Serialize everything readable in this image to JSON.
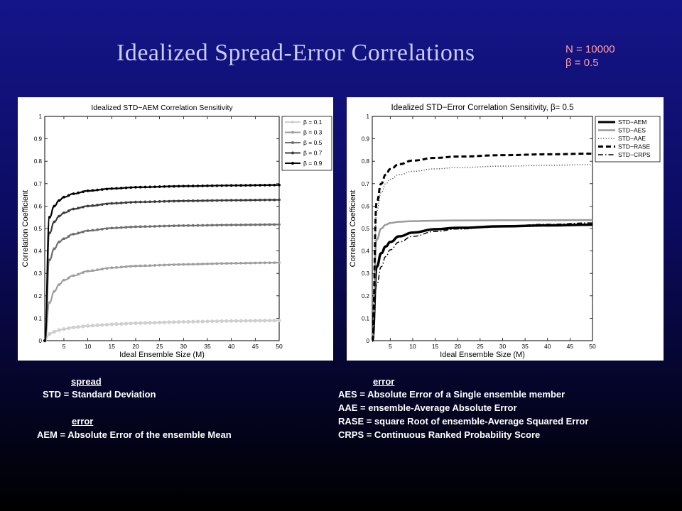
{
  "slide": {
    "title": "Idealized  Spread-Error  Correlations",
    "params": {
      "n": "N = 10000",
      "beta": "β = 0.5"
    }
  },
  "definitions": {
    "left": {
      "spread_heading": "spread",
      "std": {
        "abbr": "STD =",
        "text": "Standard Deviation"
      },
      "error_heading": "error",
      "aem": "AEM = Absolute Error of the ensemble Mean"
    },
    "right": {
      "error_heading": "error",
      "aes": "AES = Absolute Error of a Single ensemble member",
      "aae": "AAE = ensemble-Average Absolute Error",
      "rase": "RASE = square Root of ensemble-Average Squared Error",
      "crps": "CRPS = Continuous Ranked Probability Score"
    }
  },
  "colors": {
    "background_top": "#15158a",
    "background_bottom": "#000000",
    "title": "#c9ccf5",
    "params": "#ff9f9f",
    "definitions": "#ffffff"
  },
  "chart_data": [
    {
      "type": "line",
      "title": "Idealized STD−AEM Correlation Sensitivity",
      "xlabel": "Ideal Ensemble Size (M)",
      "ylabel": "Correlation Coefficient",
      "xlim": [
        1,
        50
      ],
      "ylim": [
        0,
        1
      ],
      "xticks": [
        5,
        10,
        15,
        20,
        25,
        30,
        35,
        40,
        45,
        50
      ],
      "yticks": [
        0,
        0.1,
        0.2,
        0.3,
        0.4,
        0.5,
        0.6,
        0.7,
        0.8,
        0.9,
        1
      ],
      "grid": false,
      "legend_position": "top-right",
      "x": [
        1,
        2,
        3,
        4,
        5,
        7,
        10,
        15,
        20,
        30,
        40,
        50
      ],
      "series": [
        {
          "name": "β = 0.1",
          "color": "#cfcfcf",
          "marker": true,
          "values": [
            0.0,
            0.03,
            0.04,
            0.047,
            0.052,
            0.059,
            0.066,
            0.073,
            0.078,
            0.084,
            0.088,
            0.09
          ]
        },
        {
          "name": "β = 0.3",
          "color": "#9e9e9e",
          "marker": true,
          "values": [
            0.0,
            0.17,
            0.22,
            0.25,
            0.27,
            0.29,
            0.31,
            0.325,
            0.333,
            0.34,
            0.345,
            0.348
          ]
        },
        {
          "name": "β = 0.5",
          "color": "#6e6e6e",
          "marker": true,
          "values": [
            0.0,
            0.36,
            0.41,
            0.44,
            0.455,
            0.475,
            0.49,
            0.502,
            0.508,
            0.513,
            0.516,
            0.518
          ]
        },
        {
          "name": "β = 0.7",
          "color": "#3c3c3c",
          "marker": true,
          "values": [
            0.0,
            0.48,
            0.53,
            0.555,
            0.57,
            0.587,
            0.6,
            0.612,
            0.618,
            0.623,
            0.626,
            0.628
          ]
        },
        {
          "name": "β = 0.9",
          "color": "#000000",
          "marker": true,
          "values": [
            0.0,
            0.55,
            0.6,
            0.625,
            0.64,
            0.655,
            0.668,
            0.678,
            0.684,
            0.689,
            0.692,
            0.694
          ]
        }
      ]
    },
    {
      "type": "line",
      "title": "Idealized STD−Error Correlation Sensitivity, β= 0.5",
      "xlabel": "Ideal Ensemble Size (M)",
      "ylabel": "Correlation Coefficient",
      "xlim": [
        1,
        50
      ],
      "ylim": [
        0,
        1
      ],
      "xticks": [
        5,
        10,
        15,
        20,
        25,
        30,
        35,
        40,
        45,
        50
      ],
      "yticks": [
        0,
        0.1,
        0.2,
        0.3,
        0.4,
        0.5,
        0.6,
        0.7,
        0.8,
        0.9,
        1
      ],
      "grid": false,
      "legend_position": "top-right",
      "x": [
        1,
        2,
        3,
        4,
        5,
        7,
        10,
        15,
        20,
        30,
        40,
        50
      ],
      "series": [
        {
          "name": "STD−AEM",
          "color": "#000000",
          "dash": "solid",
          "width": 3.5,
          "values": [
            0.0,
            0.33,
            0.39,
            0.42,
            0.44,
            0.465,
            0.482,
            0.497,
            0.503,
            0.51,
            0.514,
            0.517
          ]
        },
        {
          "name": "STD−AES",
          "color": "#9a9a9a",
          "dash": "solid",
          "width": 2.5,
          "values": [
            0.0,
            0.45,
            0.5,
            0.517,
            0.525,
            0.53,
            0.533,
            0.535,
            0.536,
            0.537,
            0.537,
            0.538
          ]
        },
        {
          "name": "STD−AAE",
          "color": "#555555",
          "dash": "dot",
          "width": 1.5,
          "values": [
            0.0,
            0.58,
            0.66,
            0.7,
            0.72,
            0.74,
            0.755,
            0.766,
            0.772,
            0.778,
            0.782,
            0.785
          ]
        },
        {
          "name": "STD−RASE",
          "color": "#000000",
          "dash": "dash",
          "width": 3,
          "values": [
            0.0,
            0.62,
            0.7,
            0.74,
            0.765,
            0.787,
            0.803,
            0.815,
            0.821,
            0.827,
            0.831,
            0.834
          ]
        },
        {
          "name": "STD−CRPS",
          "color": "#000000",
          "dash": "dashdot",
          "width": 1.5,
          "values": [
            0.0,
            0.25,
            0.33,
            0.375,
            0.405,
            0.44,
            0.465,
            0.487,
            0.498,
            0.511,
            0.519,
            0.525
          ]
        }
      ]
    }
  ]
}
